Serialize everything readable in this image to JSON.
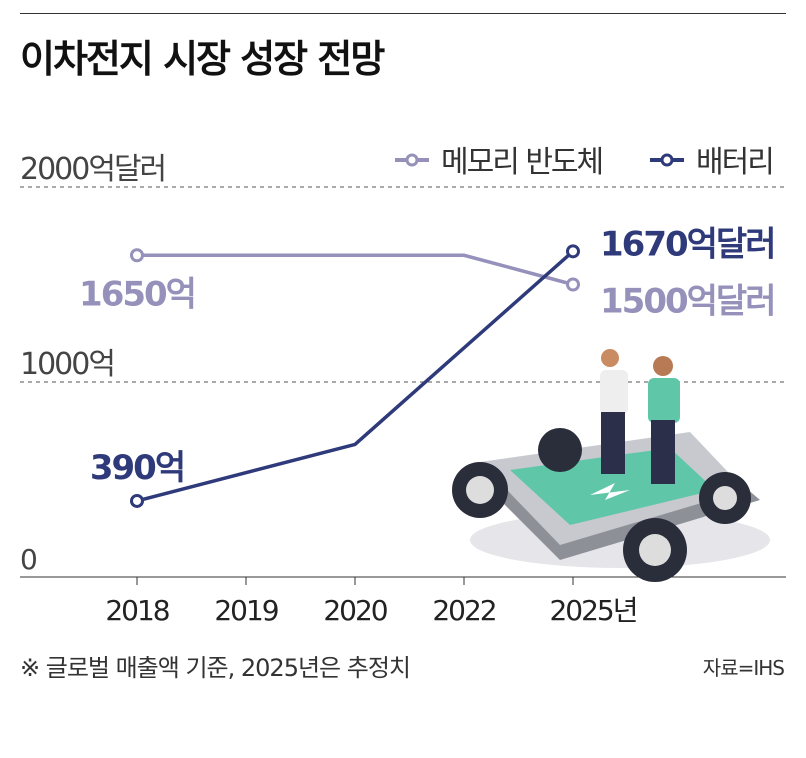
{
  "title": "이차전지 시장 성장 전망",
  "note": "※ 글로벌 매출액 기준, 2025년은 추정치",
  "source": "자료=IHS",
  "chart_data": {
    "type": "line",
    "title": "이차전지 시장 성장 전망",
    "categories": [
      "2018",
      "2019",
      "2020",
      "2022",
      "2025년"
    ],
    "ylim": [
      0,
      2000
    ],
    "yticks": [
      {
        "value": 0,
        "label": "0"
      },
      {
        "value": 1000,
        "label": "1000억"
      },
      {
        "value": 2000,
        "label": "2000억달러"
      }
    ],
    "legend_position": "top-right",
    "series": [
      {
        "name": "메모리 반도체",
        "color": "#9591bb",
        "points": [
          {
            "x": "2018",
            "y": 1650
          },
          {
            "x": "2019",
            "y": 1650
          },
          {
            "x": "2020",
            "y": 1650
          },
          {
            "x": "2022",
            "y": 1650
          },
          {
            "x": "2025년",
            "y": 1500
          }
        ],
        "markers": [
          "2018",
          "2025년"
        ],
        "labels": [
          {
            "x": "2018",
            "text": "1650억"
          },
          {
            "x": "2025년",
            "text": "1500억달러"
          }
        ]
      },
      {
        "name": "배터리",
        "color": "#2f3a7a",
        "points": [
          {
            "x": "2018",
            "y": 390
          },
          {
            "x": "2020",
            "y": 680
          },
          {
            "x": "2025년",
            "y": 1670
          }
        ],
        "markers": [
          "2018",
          "2025년"
        ],
        "labels": [
          {
            "x": "2018",
            "text": "390억"
          },
          {
            "x": "2025년",
            "text": "1670억달러"
          }
        ]
      }
    ]
  }
}
